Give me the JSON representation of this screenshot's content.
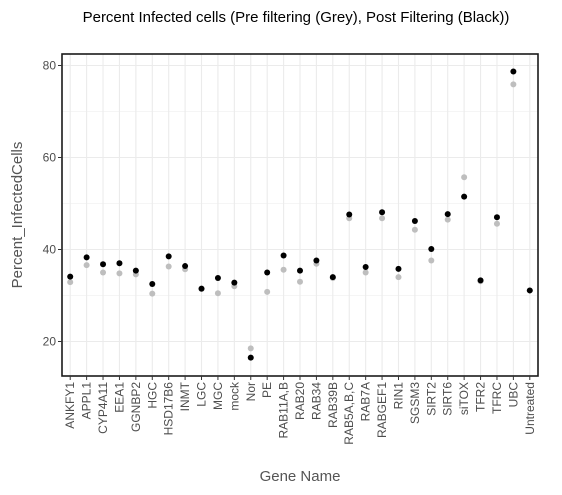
{
  "chart_data": {
    "type": "scatter",
    "title": "Percent Infected cells (Pre filtering (Grey), Post Filtering (Black))",
    "xlabel": "Gene Name",
    "ylabel": "Percent_InfectedCells",
    "ylim": [
      12.5,
      82.5
    ],
    "yticks": [
      20,
      40,
      60,
      80
    ],
    "grid": true,
    "legend": "none",
    "categories": [
      "ANKFY1",
      "APPL1",
      "CYP4A11",
      "EEA1",
      "GGNBP2",
      "HGC",
      "HSD17B6",
      "INMT",
      "LGC",
      "MGC",
      "mock",
      "Nor",
      "PE",
      "RAB11A,B",
      "RAB20",
      "RAB34",
      "RAB39B",
      "RAB5A,B,C",
      "RAB7A",
      "RABGEF1",
      "RIN1",
      "SGSM3",
      "SIRT2",
      "SIRT6",
      "siTOX",
      "TFR2",
      "TFRC",
      "UBC",
      "Untreated"
    ],
    "series": [
      {
        "color": "#bebebe",
        "values": [
          32.9,
          36.6,
          35.0,
          34.8,
          34.6,
          30.4,
          36.3,
          35.7,
          31.4,
          30.5,
          32.0,
          18.5,
          30.8,
          35.6,
          33.0,
          36.9,
          33.8,
          46.8,
          35.0,
          46.8,
          34.0,
          44.3,
          37.6,
          46.5,
          55.7,
          33.1,
          45.6,
          75.9,
          31.1
        ]
      },
      {
        "color": "#000000",
        "values": [
          34.1,
          38.3,
          36.8,
          37.0,
          35.4,
          32.5,
          38.5,
          36.4,
          31.5,
          33.8,
          32.8,
          16.5,
          35.0,
          38.7,
          35.4,
          37.6,
          34.0,
          47.6,
          36.2,
          48.1,
          35.8,
          46.2,
          40.1,
          47.7,
          51.5,
          33.3,
          47.0,
          78.7,
          31.1
        ]
      }
    ]
  }
}
